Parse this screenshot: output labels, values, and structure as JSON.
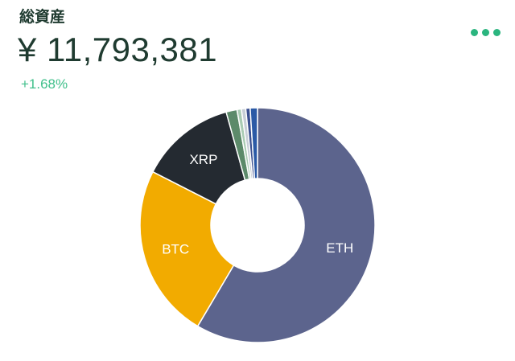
{
  "header": {
    "title": "総資産",
    "total": "¥ 11,793,381",
    "change": "+1.68%"
  },
  "menu": {
    "icon": "more-dots-icon"
  },
  "chart_data": {
    "type": "pie",
    "labels": [
      "ETH",
      "BTC",
      "XRP",
      "",
      "",
      "",
      "",
      ""
    ],
    "values": [
      58.5,
      24.0,
      13.2,
      1.5,
      0.6,
      0.6,
      0.6,
      1.0
    ],
    "colors": [
      "#5c648d",
      "#f2ab00",
      "#242a31",
      "#5c8a6a",
      "#a9cbb3",
      "#c7ced6",
      "#3a4f8f",
      "#2b5aa6"
    ]
  }
}
